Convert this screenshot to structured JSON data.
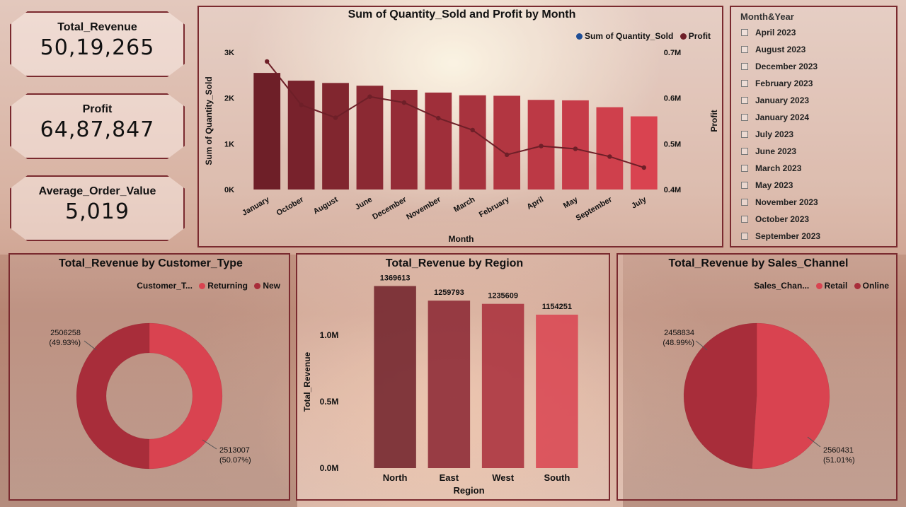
{
  "kpis": [
    {
      "label": "Total_Revenue",
      "value": "50,19,265"
    },
    {
      "label": "Profit",
      "value": "64,87,847"
    },
    {
      "label": "Average_Order_Value",
      "value": "5,019"
    }
  ],
  "slicer": {
    "title": "Month&Year",
    "items": [
      "April 2023",
      "August 2023",
      "December 2023",
      "February 2023",
      "January 2023",
      "January 2024",
      "July 2023",
      "June 2023",
      "March 2023",
      "May 2023",
      "November 2023",
      "October 2023",
      "September 2023"
    ]
  },
  "colors": {
    "dark": "#6e1f28",
    "mid": "#a82d3a",
    "light": "#d94350",
    "blue": "#1f4e96"
  },
  "chart_data": [
    {
      "type": "bar",
      "title": "Sum of Quantity_Sold and Profit by Month",
      "xlabel": "Month",
      "ylabel": "Sum of Quantity_Sold",
      "y2label": "Profit",
      "legend": [
        "Sum of Quantity_Sold",
        "Profit"
      ],
      "categories": [
        "January",
        "October",
        "August",
        "June",
        "December",
        "November",
        "March",
        "February",
        "April",
        "May",
        "September",
        "July"
      ],
      "series": [
        {
          "name": "Sum of Quantity_Sold",
          "type": "bar",
          "values": [
            2550,
            2380,
            2330,
            2270,
            2180,
            2120,
            2060,
            2050,
            1960,
            1950,
            1800,
            1600
          ]
        },
        {
          "name": "Profit",
          "type": "line",
          "axis": "secondary",
          "values": [
            0.68,
            0.585,
            0.557,
            0.603,
            0.59,
            0.556,
            0.53,
            0.476,
            0.495,
            0.489,
            0.472,
            0.448
          ]
        }
      ],
      "ylim": [
        0,
        3000
      ],
      "yticks": [
        "0K",
        "1K",
        "2K",
        "3K"
      ],
      "y2lim": [
        0.4,
        0.7
      ],
      "y2ticks": [
        "0.4M",
        "0.5M",
        "0.6M",
        "0.7M"
      ]
    },
    {
      "type": "pie",
      "title": "Total_Revenue by Customer_Type",
      "legend_title": "Customer_T...",
      "slices": [
        {
          "name": "Returning",
          "value": 2513007,
          "label": "2513007",
          "pct": "(50.07%)"
        },
        {
          "name": "New",
          "value": 2506258,
          "label": "2506258",
          "pct": "(49.93%)"
        }
      ]
    },
    {
      "type": "bar",
      "title": "Total_Revenue by Region",
      "xlabel": "Region",
      "ylabel": "Total_Revenue",
      "categories": [
        "North",
        "East",
        "West",
        "South"
      ],
      "values": [
        1369613,
        1259793,
        1235609,
        1154251
      ],
      "labels": [
        "1369613",
        "1259793",
        "1235609",
        "1154251"
      ],
      "yticks": [
        "0.0M",
        "0.5M",
        "1.0M"
      ],
      "ylim": [
        0,
        1500000
      ]
    },
    {
      "type": "pie",
      "title": "Total_Revenue by Sales_Channel",
      "legend_title": "Sales_Chan...",
      "slices": [
        {
          "name": "Retail",
          "value": 2560431,
          "label": "2560431",
          "pct": "(51.01%)"
        },
        {
          "name": "Online",
          "value": 2458834,
          "label": "2458834",
          "pct": "(48.99%)"
        }
      ]
    }
  ]
}
